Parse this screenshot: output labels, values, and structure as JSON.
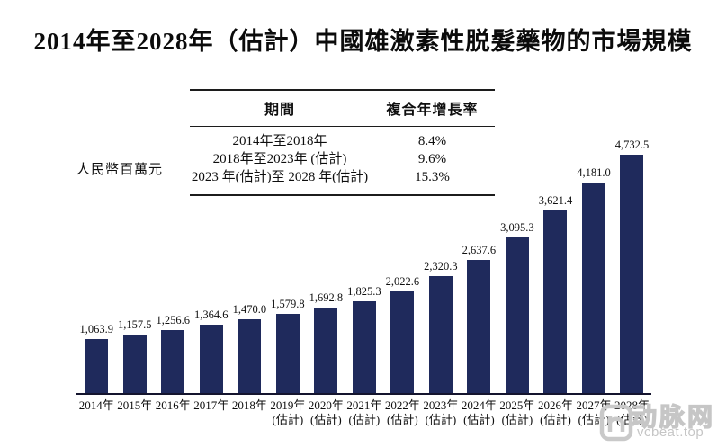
{
  "title": "2014年至2028年（估計）中國雄激素性脱髮藥物的市場規模",
  "unit_label": "人民幣百萬元",
  "cagr_table": {
    "headers": [
      "期間",
      "複合年增長率"
    ],
    "rows": [
      {
        "period": "2014年至2018年",
        "cagr": "8.4%"
      },
      {
        "period": "2018年至2023年 (估計)",
        "cagr": "9.6%"
      },
      {
        "period": "2023 年(估計)至 2028 年(估計)",
        "cagr": "15.3%"
      }
    ]
  },
  "chart_data": {
    "type": "bar",
    "title": "2014年至2028年（估計）中國雄激素性脱髮藥物的市場規模",
    "categories": [
      "2014年",
      "2015年",
      "2016年",
      "2017年",
      "2018年",
      "2019年",
      "2020年",
      "2021年",
      "2022年",
      "2023年",
      "2024年",
      "2025年",
      "2026年",
      "2027年",
      "2028年"
    ],
    "estimate_suffix": "(估計)",
    "estimated_from_index": 5,
    "values": [
      1063.9,
      1157.5,
      1256.6,
      1364.6,
      1470.0,
      1579.8,
      1692.8,
      1825.3,
      2022.6,
      2320.3,
      2637.6,
      3095.3,
      3621.4,
      4181.0,
      4732.5
    ],
    "value_labels": [
      "1,063.9",
      "1,157.5",
      "1,256.6",
      "1,364.6",
      "1,470.0",
      "1,579.8",
      "1,692.8",
      "1,825.3",
      "2,022.6",
      "2,320.3",
      "2,637.6",
      "3,095.3",
      "3,621.4",
      "4,181.0",
      "4,732.5"
    ],
    "xlabel": "",
    "ylabel": "人民幣百萬元",
    "ylim": [
      0,
      4732.5
    ],
    "grid": false,
    "legend": "none",
    "bar_color": "#1f2a5c",
    "axis_color": "#14142e"
  },
  "watermark": {
    "logo": "vcbeat-logo",
    "name": "动脉网",
    "site": "vcbeat.top",
    "color": "#c6c6c6"
  }
}
